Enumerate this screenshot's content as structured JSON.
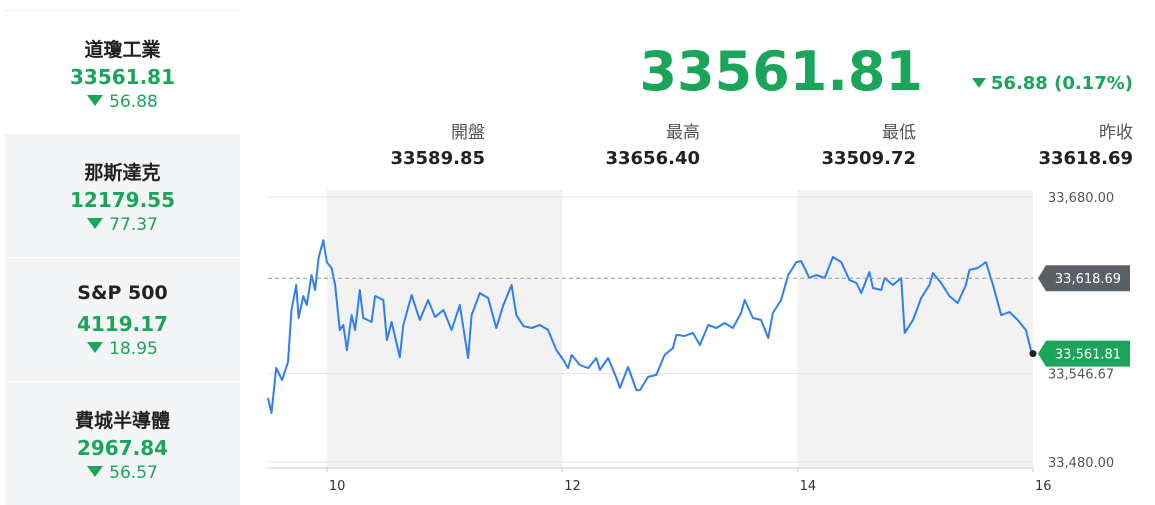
{
  "sidebar": [
    {
      "name": "道瓊工業",
      "price": "33561.81",
      "change": "56.88"
    },
    {
      "name": "那斯達克",
      "price": "12179.55",
      "change": "77.37"
    },
    {
      "name": "S&P 500",
      "price": "4119.17",
      "change": "18.95"
    },
    {
      "name": "費城半導體",
      "price": "2967.84",
      "change": "56.57"
    }
  ],
  "header": {
    "price": "33561.81",
    "change": "56.88 (0.17%)"
  },
  "stats": [
    {
      "label": "開盤",
      "value": "33589.85"
    },
    {
      "label": "最高",
      "value": "33656.40"
    },
    {
      "label": "最低",
      "value": "33509.72"
    },
    {
      "label": "昨收",
      "value": "33618.69"
    }
  ],
  "chart_data": {
    "type": "line",
    "color": "#2f7ff0",
    "x": [
      9.5,
      9.53,
      9.57,
      9.62,
      9.67,
      9.7,
      9.74,
      9.76,
      9.8,
      9.83,
      9.87,
      9.9,
      9.93,
      9.97,
      10.0,
      10.04,
      10.07,
      10.11,
      10.14,
      10.17,
      10.21,
      10.24,
      10.28,
      10.31,
      10.38,
      10.41,
      10.48,
      10.51,
      10.55,
      10.62,
      10.65,
      10.72,
      10.79,
      10.86,
      10.92,
      10.99,
      11.06,
      11.13,
      11.2,
      11.23,
      11.3,
      11.37,
      11.44,
      11.5,
      11.57,
      11.61,
      11.67,
      11.74,
      11.81,
      11.88,
      11.95,
      12.01,
      12.05,
      12.08,
      12.15,
      12.22,
      12.29,
      12.32,
      12.39,
      12.46,
      12.49,
      12.56,
      12.63,
      12.66,
      12.73,
      12.8,
      12.87,
      12.94,
      12.97,
      13.04,
      13.11,
      13.17,
      13.24,
      13.31,
      13.38,
      13.45,
      13.52,
      13.55,
      13.62,
      13.69,
      13.75,
      13.79,
      13.86,
      13.92,
      13.99,
      14.03,
      14.1,
      14.16,
      14.23,
      14.3,
      14.37,
      14.44,
      14.5,
      14.54,
      14.61,
      14.64,
      14.71,
      14.74,
      14.81,
      14.88,
      14.91,
      14.98,
      15.05,
      15.12,
      15.15,
      15.22,
      15.29,
      15.36,
      15.43,
      15.46,
      15.53,
      15.6,
      15.66,
      15.73,
      15.8,
      15.87,
      15.94,
      15.99
    ],
    "values": [
      33528.3,
      33517.0,
      33551.0,
      33541.9,
      33555.5,
      33594.7,
      33613.6,
      33588.7,
      33605.3,
      33598.5,
      33621.1,
      33609.8,
      33634.0,
      33647.5,
      33630.9,
      33626.4,
      33613.6,
      33579.6,
      33583.4,
      33564.5,
      33590.9,
      33579.6,
      33609.8,
      33588.7,
      33585.7,
      33605.3,
      33602.3,
      33572.1,
      33585.7,
      33559.2,
      33583.4,
      33606.0,
      33587.2,
      33602.3,
      33589.4,
      33594.7,
      33579.6,
      33598.5,
      33558.5,
      33590.9,
      33607.5,
      33603.8,
      33581.1,
      33598.5,
      33613.6,
      33590.9,
      33582.6,
      33581.1,
      33583.4,
      33579.6,
      33564.5,
      33557.0,
      33550.9,
      33560.8,
      33553.2,
      33550.9,
      33558.5,
      33549.4,
      33558.5,
      33543.4,
      33535.9,
      33551.7,
      33534.3,
      33534.3,
      33544.2,
      33545.7,
      33560.8,
      33566.0,
      33575.9,
      33575.1,
      33577.4,
      33568.3,
      33583.4,
      33581.1,
      33584.9,
      33581.1,
      33592.5,
      33602.3,
      33588.7,
      33587.2,
      33573.6,
      33592.5,
      33602.3,
      33621.1,
      33630.9,
      33631.7,
      33618.9,
      33621.1,
      33618.9,
      33634.7,
      33630.9,
      33617.4,
      33615.1,
      33607.5,
      33623.4,
      33611.3,
      33609.8,
      33618.9,
      33613.6,
      33618.9,
      33577.4,
      33587.2,
      33603.8,
      33613.6,
      33622.6,
      33615.1,
      33605.3,
      33600.0,
      33613.6,
      33624.9,
      33626.4,
      33630.9,
      33613.6,
      33590.9,
      33593.2,
      33587.2,
      33579.6,
      33561.81
    ],
    "xlim": [
      9.5,
      16
    ],
    "xticks": [
      10,
      12,
      14,
      16
    ],
    "ylim": [
      33480,
      33680
    ],
    "yticks": [
      {
        "value": 33680,
        "label": "33,680.00"
      },
      {
        "value": 33546.67,
        "label": "33,546.67"
      },
      {
        "value": 33480,
        "label": "33,480.00"
      }
    ],
    "grid": true,
    "reference_lines": [
      {
        "value": 33618.69,
        "label": "33,618.69",
        "color": "#5b6066"
      },
      {
        "value": 33561.81,
        "label": "33,561.81",
        "color": "#1aa55a"
      }
    ]
  }
}
